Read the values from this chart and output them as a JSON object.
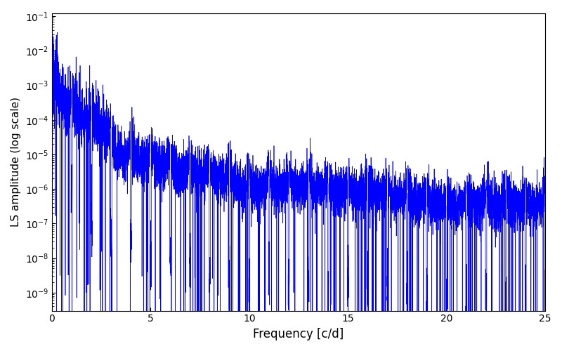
{
  "title": "",
  "xlabel": "Frequency [c/d]",
  "ylabel": "LS amplitude (log scale)",
  "xlim": [
    0,
    25
  ],
  "ylim_log": [
    3e-10,
    0.12
  ],
  "line_color": "#0000ff",
  "line_width": 0.5,
  "yscale": "log",
  "figsize": [
    8.0,
    5.0
  ],
  "dpi": 100,
  "seed": 12345,
  "n_points": 8000,
  "freq_max": 25.0,
  "background_color": "#ffffff"
}
